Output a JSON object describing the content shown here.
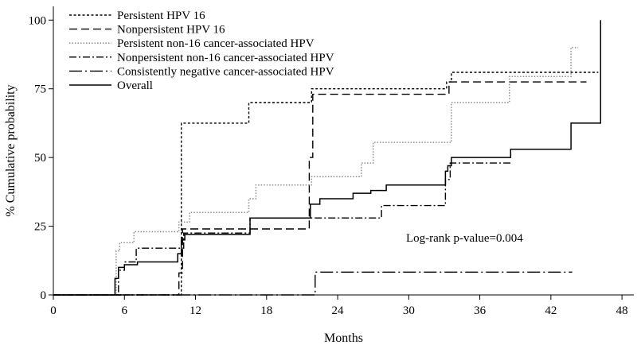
{
  "chart_data": {
    "type": "line",
    "step": true,
    "title": "",
    "xlabel": "Months",
    "ylabel": "% Cumulative probability",
    "xlim": [
      0,
      49
    ],
    "ylim": [
      0,
      105
    ],
    "xticks": [
      0,
      6,
      12,
      18,
      24,
      30,
      36,
      42,
      48
    ],
    "yticks": [
      0,
      25,
      50,
      75,
      100
    ],
    "grid": false,
    "legend_position": "top-left",
    "annotation": "Log-rank p-value=0.004",
    "colors": {
      "axis": "#000000",
      "dark": "#000000",
      "gray": "#8c8c8c"
    },
    "series": [
      {
        "name": "Persistent HPV 16",
        "dash": "3,2.5",
        "color": "#000000",
        "width": 1.4,
        "points": [
          [
            0,
            0
          ],
          [
            10.8,
            0
          ],
          [
            10.8,
            62.5
          ],
          [
            16.5,
            62.5
          ],
          [
            16.5,
            70
          ],
          [
            21.8,
            70
          ],
          [
            21.8,
            75
          ],
          [
            33.2,
            75
          ],
          [
            33.2,
            77.5
          ],
          [
            33.6,
            77.5
          ],
          [
            33.6,
            81
          ],
          [
            46,
            81
          ]
        ]
      },
      {
        "name": "Nonpersistent HPV 16",
        "dash": "10,5",
        "color": "#000000",
        "width": 1.4,
        "points": [
          [
            0,
            0
          ],
          [
            10.6,
            0
          ],
          [
            10.6,
            8
          ],
          [
            10.9,
            8
          ],
          [
            10.9,
            24
          ],
          [
            21.6,
            24
          ],
          [
            21.6,
            50
          ],
          [
            21.9,
            50
          ],
          [
            21.9,
            73
          ],
          [
            33.4,
            73
          ],
          [
            33.4,
            77.5
          ],
          [
            45,
            77.5
          ]
        ]
      },
      {
        "name": "Persistent non-16 cancer-associated HPV",
        "dash": "1.5,2",
        "color": "#8c8c8c",
        "width": 1.5,
        "points": [
          [
            0,
            0
          ],
          [
            5.3,
            0
          ],
          [
            5.3,
            16
          ],
          [
            5.6,
            16
          ],
          [
            5.6,
            19
          ],
          [
            6.8,
            19
          ],
          [
            6.8,
            23
          ],
          [
            10.6,
            23
          ],
          [
            10.6,
            26.5
          ],
          [
            11.5,
            26.5
          ],
          [
            11.5,
            30
          ],
          [
            16.5,
            30
          ],
          [
            16.5,
            35
          ],
          [
            17.1,
            35
          ],
          [
            17.1,
            40
          ],
          [
            21.8,
            40
          ],
          [
            21.8,
            43
          ],
          [
            26,
            43
          ],
          [
            26,
            48
          ],
          [
            27,
            48
          ],
          [
            27,
            55.5
          ],
          [
            33.6,
            55.5
          ],
          [
            33.6,
            70
          ],
          [
            38.5,
            70
          ],
          [
            38.5,
            79.5
          ],
          [
            43.7,
            79.5
          ],
          [
            43.7,
            90
          ],
          [
            44.3,
            90
          ]
        ]
      },
      {
        "name": "Nonpersistent non-16 cancer-associated HPV",
        "dash": "9,3,2,3",
        "color": "#000000",
        "width": 1.4,
        "points": [
          [
            0,
            0
          ],
          [
            5.5,
            0
          ],
          [
            5.5,
            9
          ],
          [
            6,
            9
          ],
          [
            6,
            12
          ],
          [
            7,
            12
          ],
          [
            7,
            17
          ],
          [
            11,
            17
          ],
          [
            11,
            22.5
          ],
          [
            16.6,
            22.5
          ],
          [
            16.6,
            28
          ],
          [
            27.7,
            28
          ],
          [
            27.7,
            32.5
          ],
          [
            33.1,
            32.5
          ],
          [
            33.1,
            42
          ],
          [
            33.5,
            42
          ],
          [
            33.5,
            48
          ],
          [
            38.6,
            48
          ]
        ]
      },
      {
        "name": "Consistently negative cancer-associated HPV",
        "dash": "16,4,2,4",
        "color": "#000000",
        "width": 1.4,
        "points": [
          [
            0,
            0
          ],
          [
            22.1,
            0
          ],
          [
            22.1,
            8.3
          ],
          [
            43.8,
            8.3
          ]
        ]
      },
      {
        "name": "Overall",
        "dash": "",
        "color": "#000000",
        "width": 1.5,
        "points": [
          [
            0,
            0
          ],
          [
            5.2,
            0
          ],
          [
            5.2,
            6
          ],
          [
            5.5,
            6
          ],
          [
            5.5,
            10
          ],
          [
            6,
            10
          ],
          [
            6,
            11
          ],
          [
            7.1,
            11
          ],
          [
            7.1,
            12
          ],
          [
            10.5,
            12
          ],
          [
            10.5,
            15
          ],
          [
            10.8,
            15
          ],
          [
            10.8,
            20
          ],
          [
            11.1,
            20
          ],
          [
            11.1,
            22
          ],
          [
            16.6,
            22
          ],
          [
            16.6,
            28
          ],
          [
            21.7,
            28
          ],
          [
            21.7,
            33
          ],
          [
            22.5,
            33
          ],
          [
            22.5,
            35
          ],
          [
            25.3,
            35
          ],
          [
            25.3,
            37
          ],
          [
            26.8,
            37
          ],
          [
            26.8,
            38
          ],
          [
            28.1,
            38
          ],
          [
            28.1,
            40
          ],
          [
            33.1,
            40
          ],
          [
            33.1,
            45
          ],
          [
            33.3,
            45
          ],
          [
            33.3,
            47
          ],
          [
            33.6,
            47
          ],
          [
            33.6,
            50
          ],
          [
            38.6,
            50
          ],
          [
            38.6,
            53
          ],
          [
            43.7,
            53
          ],
          [
            43.7,
            62.5
          ],
          [
            46.2,
            62.5
          ],
          [
            46.2,
            100
          ]
        ]
      }
    ]
  }
}
